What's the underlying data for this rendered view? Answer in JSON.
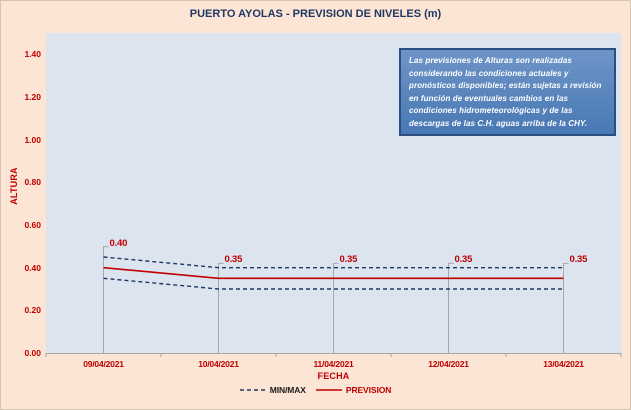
{
  "note": {
    "text": "Las previsiones de Alturas son realizadas considerando las condiciones actuales y pronósticos disponibles;  están sujetas a revisión en función de eventuales cambios en las condiciones hidrometeorológicas y de las descargas de las C.H. aguas arriba de la CHY."
  },
  "colors": {
    "background": "#fce5d4",
    "plot_background": "#dce4ef",
    "title": "#1f3864",
    "axis_text": "#c00000",
    "prevision": "#c00000",
    "minmax": "#1f3864",
    "leader": "#a6a6a6",
    "axis_line": "#a6a6a6",
    "note_fill": "#4878b4",
    "note_border": "#2d4f80",
    "note_text": "#ffffff"
  },
  "chart_data": {
    "type": "line",
    "title": "PUERTO AYOLAS - PREVISION DE NIVELES (m)",
    "xlabel": "FECHA",
    "ylabel": "ALTURA",
    "categories": [
      "09/04/2021",
      "10/04/2021",
      "11/04/2021",
      "12/04/2021",
      "13/04/2021"
    ],
    "series": [
      {
        "name": "MIN/MAX",
        "role": "max",
        "style": "dashed",
        "color": "#1f3864",
        "values": [
          0.45,
          0.4,
          0.4,
          0.4,
          0.4
        ]
      },
      {
        "name": "MIN/MAX",
        "role": "min",
        "style": "dashed",
        "color": "#1f3864",
        "values": [
          0.35,
          0.3,
          0.3,
          0.3,
          0.3
        ]
      },
      {
        "name": "PREVISION",
        "role": "forecast",
        "style": "solid",
        "color": "#c00000",
        "values": [
          0.4,
          0.35,
          0.35,
          0.35,
          0.35
        ]
      }
    ],
    "data_labels": [
      "0.40",
      "0.35",
      "0.35",
      "0.35",
      "0.35"
    ],
    "y_ticks": [
      "0.00",
      "0.20",
      "0.40",
      "0.60",
      "0.80",
      "1.00",
      "1.20",
      "1.40"
    ],
    "y_tick_step": 0.2,
    "ylim": [
      0,
      1.5
    ],
    "grid": false,
    "legend_position": "bottom",
    "legend": [
      {
        "label": "MIN/MAX",
        "style": "dashed",
        "color": "#1f3864"
      },
      {
        "label": "PREVISION",
        "style": "solid",
        "color": "#c00000"
      }
    ]
  }
}
